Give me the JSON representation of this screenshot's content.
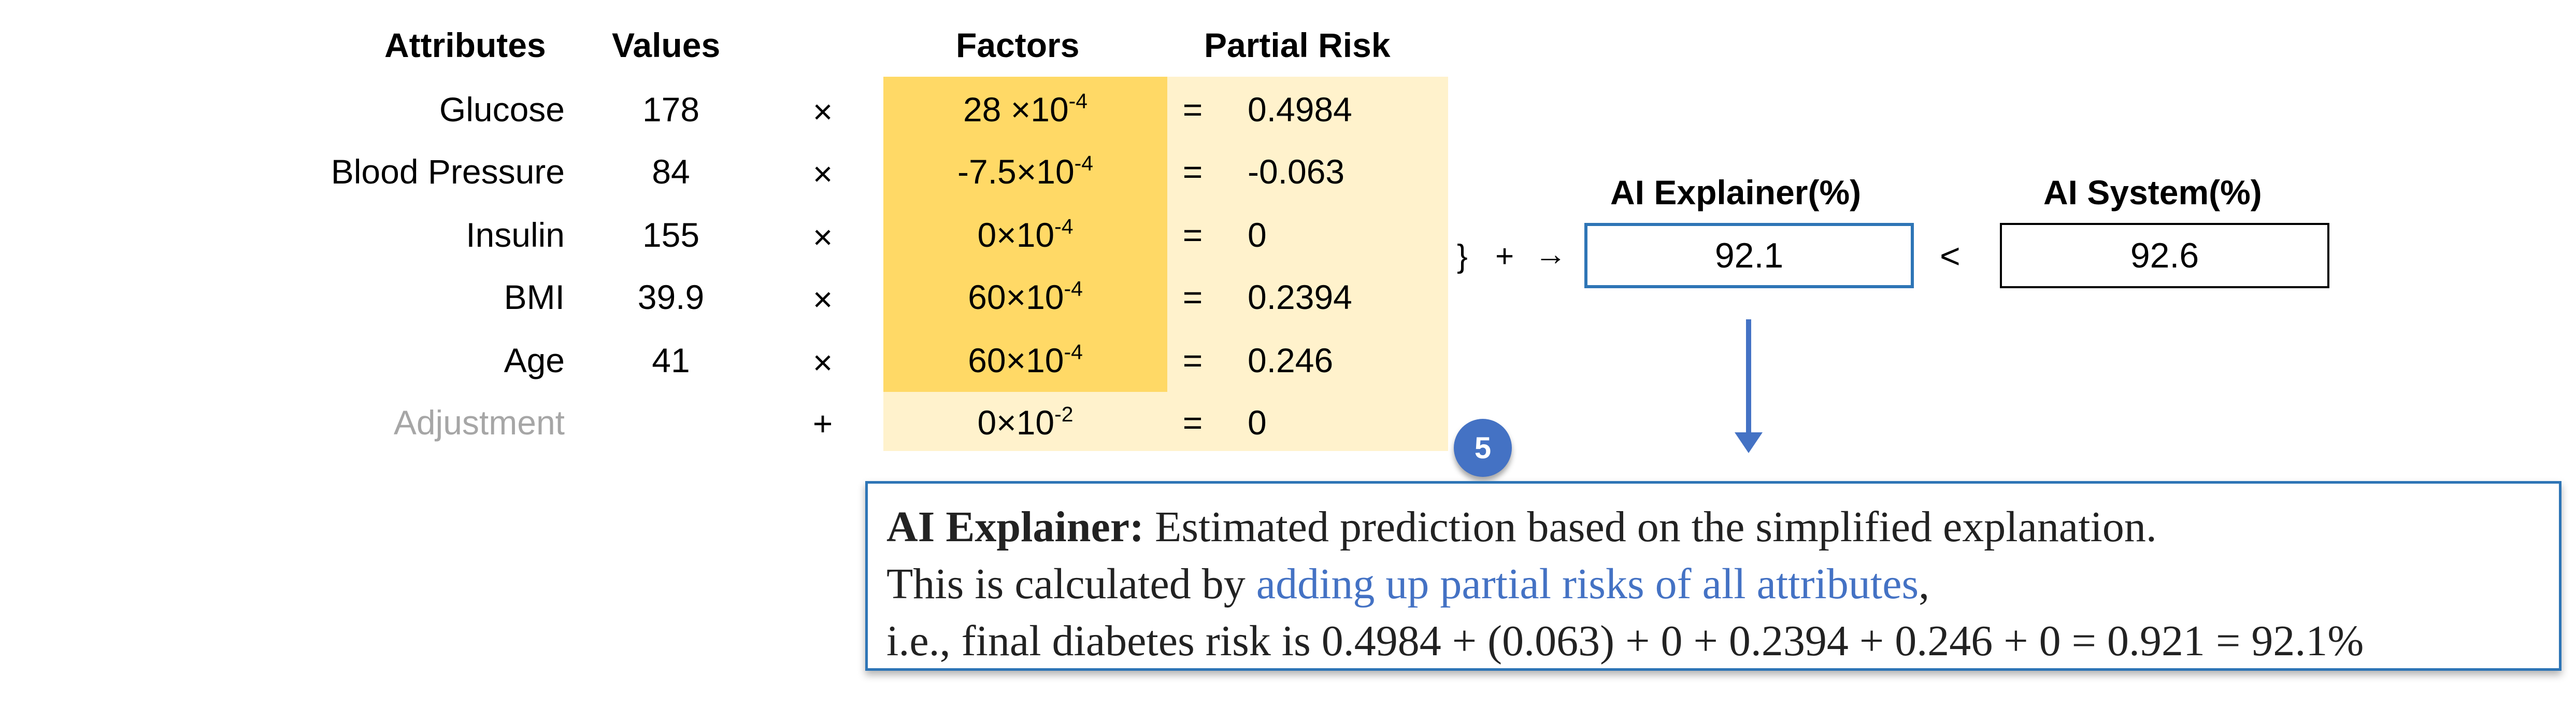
{
  "headers": {
    "attributes": "Attributes",
    "values": "Values",
    "factors": "Factors",
    "partial_risk": "Partial Risk"
  },
  "rows": [
    {
      "attribute": "Glucose",
      "value": "178",
      "op": "×",
      "factor_base": "28 ×10",
      "factor_exp": "-4",
      "eq": "=",
      "partial": "0.4984"
    },
    {
      "attribute": "Blood Pressure",
      "value": "84",
      "op": "×",
      "factor_base": "-7.5×10",
      "factor_exp": "-4",
      "eq": "=",
      "partial": "-0.063"
    },
    {
      "attribute": "Insulin",
      "value": "155",
      "op": "×",
      "factor_base": "0×10",
      "factor_exp": "-4",
      "eq": "=",
      "partial": "0"
    },
    {
      "attribute": "BMI",
      "value": "39.9",
      "op": "×",
      "factor_base": "60×10",
      "factor_exp": "-4",
      "eq": "=",
      "partial": "0.2394"
    },
    {
      "attribute": "Age",
      "value": "41",
      "op": "×",
      "factor_base": "60×10",
      "factor_exp": "-4",
      "eq": "=",
      "partial": "0.246"
    },
    {
      "attribute": "Adjustment",
      "value": "",
      "op": "+",
      "factor_base": "0×10",
      "factor_exp": "-2",
      "eq": "=",
      "partial": "0"
    }
  ],
  "sum_ops": {
    "brace": "}",
    "plus": "+",
    "arrow": "→",
    "less_than": "<"
  },
  "explainer": {
    "label": "AI Explainer(%)",
    "value": "92.1"
  },
  "system": {
    "label": "AI System(%)",
    "value": "92.6"
  },
  "badge": "5",
  "callout": {
    "title": "AI Explainer:",
    "line1_rest": " Estimated prediction based on the simplified explanation.",
    "line2_prefix": "This is calculated by ",
    "line2_link": "adding up partial risks of all attributes",
    "line2_suffix": ",",
    "line3": "i.e., final diabetes risk is 0.4984 + (0.063) + 0 + 0.2394 + 0.246 + 0 = 0.921 = 92.1%"
  },
  "colors": {
    "factor_dark": "#ffd966",
    "factor_light": "#fff2cc",
    "accent_blue": "#4472c4",
    "border_blue": "#2e75b6",
    "muted": "#a6a6a6"
  }
}
